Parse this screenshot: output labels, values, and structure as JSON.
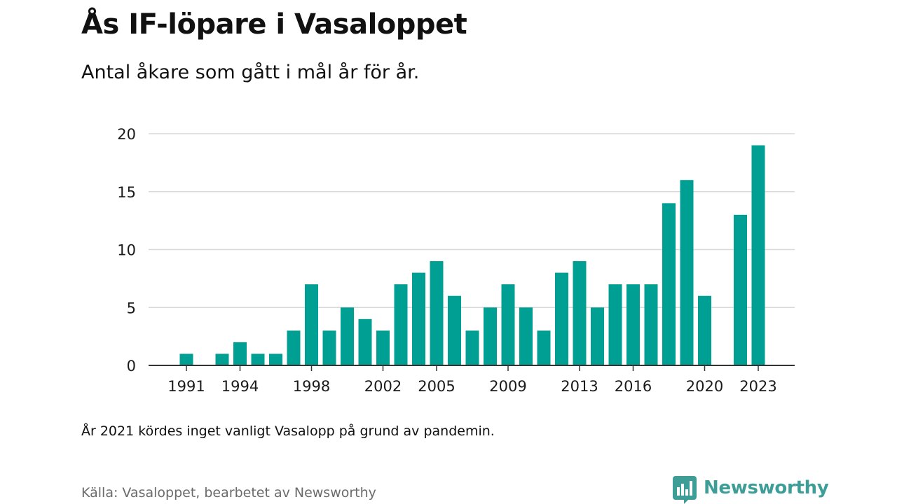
{
  "title": "Ås IF-löpare i Vasaloppet",
  "subtitle": "Antal åkare som gått i mål år för år.",
  "note": "År 2021 kördes inget vanligt Vasalopp på grund av pandemin.",
  "source": "Källa: Vasaloppet, bearbetet av Newsworthy",
  "brand": {
    "name": "Newsworthy",
    "color": "#3d9e97",
    "icon": "newsworthy-logo-icon"
  },
  "colors": {
    "bar": "#009f93",
    "grid": "#d9d9d9",
    "axis": "#333333"
  },
  "chart_data": {
    "type": "bar",
    "x": [
      1991,
      1992,
      1993,
      1994,
      1995,
      1996,
      1997,
      1998,
      1999,
      2000,
      2001,
      2002,
      2003,
      2004,
      2005,
      2006,
      2007,
      2008,
      2009,
      2010,
      2011,
      2012,
      2013,
      2014,
      2015,
      2016,
      2017,
      2018,
      2019,
      2020,
      2021,
      2022,
      2023
    ],
    "values": [
      1,
      0,
      1,
      2,
      1,
      1,
      3,
      7,
      3,
      5,
      4,
      3,
      7,
      8,
      9,
      6,
      3,
      5,
      7,
      5,
      3,
      8,
      9,
      5,
      7,
      7,
      7,
      14,
      16,
      6,
      0,
      13,
      19
    ],
    "x_tick_labels": [
      "1991",
      "1994",
      "1998",
      "2002",
      "2005",
      "2009",
      "2013",
      "2016",
      "2020",
      "2023"
    ],
    "y_ticks": [
      0,
      5,
      10,
      15,
      20
    ],
    "ylim": [
      0,
      20
    ],
    "xlabel": "",
    "ylabel": "",
    "grid": true,
    "legend": "none"
  }
}
